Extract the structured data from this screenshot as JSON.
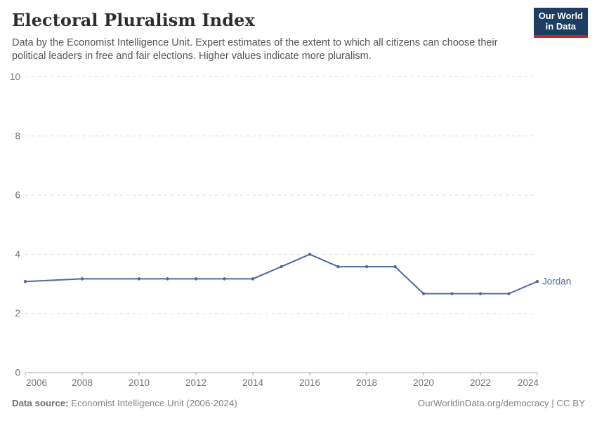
{
  "header": {
    "title": "Electoral Pluralism Index",
    "subtitle": "Data by the Economist Intelligence Unit. Expert estimates of the extent to which all citizens can choose their political leaders in free and fair elections. Higher values indicate more pluralism."
  },
  "logo": {
    "line1": "Our World",
    "line2": "in Data",
    "background_color": "#1d3d63",
    "accent_color": "#c42928"
  },
  "chart_data": {
    "type": "line",
    "title": "Electoral Pluralism Index",
    "xlabel": "",
    "ylabel": "",
    "xlim": [
      2006,
      2024
    ],
    "ylim": [
      0,
      10
    ],
    "xticks": [
      2006,
      2008,
      2010,
      2012,
      2014,
      2016,
      2018,
      2020,
      2022,
      2024
    ],
    "yticks": [
      0,
      2,
      4,
      6,
      8,
      10
    ],
    "grid": "horizontal-dashed",
    "legend_position": "end-of-line-label",
    "series": [
      {
        "name": "Jordan",
        "color": "#4c6a9d",
        "points": [
          [
            2006,
            3.08
          ],
          [
            2008,
            3.17
          ],
          [
            2010,
            3.17
          ],
          [
            2011,
            3.17
          ],
          [
            2012,
            3.17
          ],
          [
            2013,
            3.17
          ],
          [
            2014,
            3.17
          ],
          [
            2015,
            3.58
          ],
          [
            2016,
            4.0
          ],
          [
            2017,
            3.58
          ],
          [
            2018,
            3.58
          ],
          [
            2019,
            3.58
          ],
          [
            2020,
            2.67
          ],
          [
            2021,
            2.67
          ],
          [
            2022,
            2.67
          ],
          [
            2023,
            2.67
          ],
          [
            2024,
            3.08
          ]
        ]
      }
    ],
    "colors": {
      "gridline": "#dddddd",
      "axis": "#a5a5a5",
      "tick_label": "#737373"
    }
  },
  "footer": {
    "data_source_label": "Data source:",
    "data_source_value": " Economist Intelligence Unit (2006-2024)",
    "right_text": "OurWorldinData.org/democracy | CC BY"
  }
}
